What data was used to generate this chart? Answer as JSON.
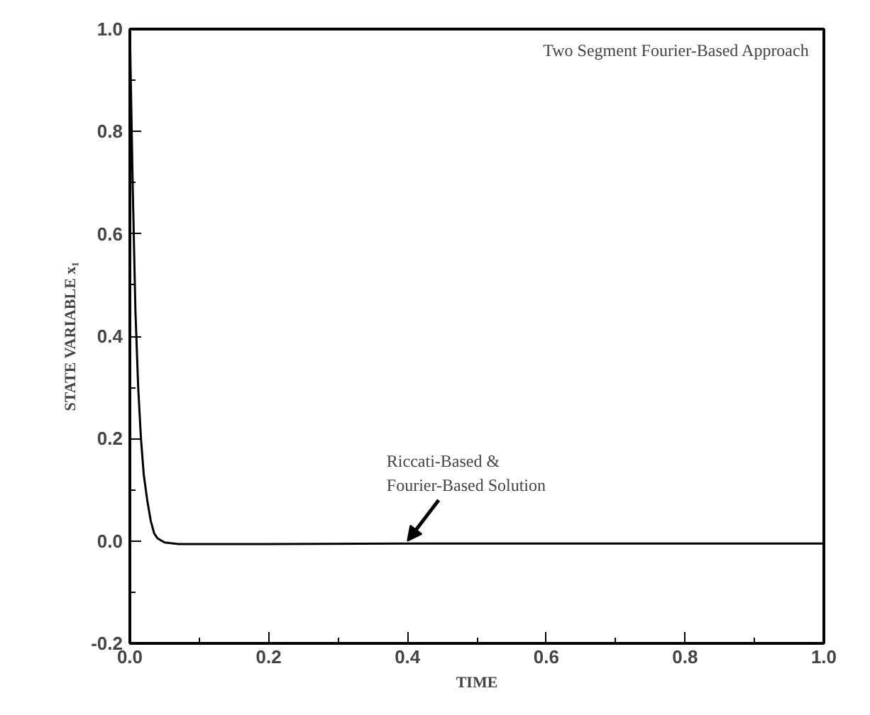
{
  "chart_data": {
    "type": "line",
    "xlabel": "TIME",
    "ylabel": "STATE VARIABLE x₁",
    "x": [
      0,
      0.004,
      0.008,
      0.012,
      0.016,
      0.02,
      0.025,
      0.03,
      0.035,
      0.04,
      0.05,
      0.07,
      0.2,
      0.4,
      0.6,
      0.8,
      1.0
    ],
    "series": [
      {
        "color": "#000000",
        "values": [
          1.0,
          0.7,
          0.45,
          0.3,
          0.2,
          0.13,
          0.08,
          0.04,
          0.015,
          0.005,
          -0.003,
          -0.006,
          -0.006,
          -0.005,
          -0.005,
          -0.005,
          -0.005
        ]
      }
    ],
    "xlim": [
      0,
      1.0
    ],
    "ylim": [
      -0.2,
      1.0
    ],
    "xticks": [
      {
        "value": 0,
        "label": "0.0"
      },
      0.2,
      0.4,
      0.6,
      0.8,
      {
        "value": 1.0,
        "label": "1.0"
      }
    ],
    "yticks": [
      -0.2,
      {
        "value": 0,
        "label": "0.0"
      },
      0.2,
      0.4,
      0.6,
      0.8,
      {
        "value": 1.0,
        "label": "1.0"
      }
    ],
    "grid": false,
    "marker": "none",
    "line_style": "solid",
    "annotations": [
      "Two Segment Fourier-Based Approach",
      {
        "text": "Riccati-Based &\nFourier-Based Solution",
        "x": 0.4,
        "y": 0.0
      }
    ]
  }
}
